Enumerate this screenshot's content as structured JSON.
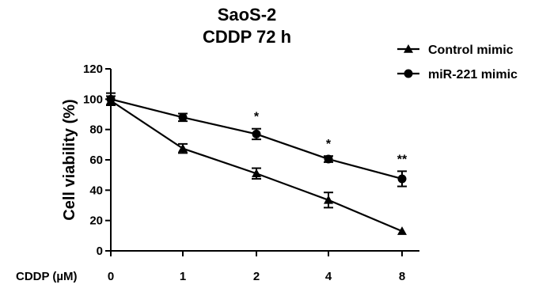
{
  "chart_data": {
    "type": "line",
    "title": "SaoS-2",
    "subtitle": "CDDP 72 h",
    "xlabel": "CDDP (µM)",
    "ylabel": "Cell viability (%)",
    "categories": [
      "0",
      "1",
      "2",
      "4",
      "8"
    ],
    "ylim": [
      0,
      120
    ],
    "yticks": [
      0,
      20,
      40,
      60,
      80,
      100,
      120
    ],
    "legend_position": "top-right",
    "series": [
      {
        "name": "Control mimic",
        "marker": "triangle",
        "values": [
          99,
          67.5,
          51,
          33.5,
          13
        ],
        "errors": [
          3,
          3,
          3.5,
          5,
          0
        ]
      },
      {
        "name": "miR-221 mimic",
        "marker": "circle",
        "values": [
          100,
          88,
          77,
          60.5,
          47.5
        ],
        "errors": [
          4,
          2.5,
          3.5,
          2,
          5
        ]
      }
    ],
    "annotations": [
      {
        "category": "2",
        "text": "*"
      },
      {
        "category": "4",
        "text": "*"
      },
      {
        "category": "8",
        "text": "**"
      }
    ]
  }
}
